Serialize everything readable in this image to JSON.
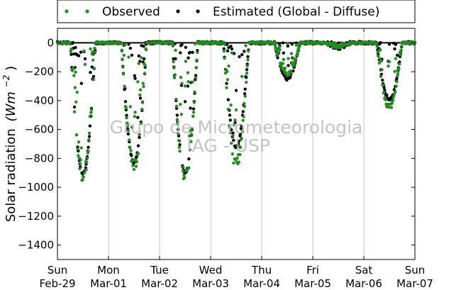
{
  "chart_data": {
    "type": "scatter",
    "title": "",
    "xlabel": "",
    "ylabel": "Solar radiation",
    "ylabel_unit": "(Wm^-2)",
    "ylabel_unit_base": "(Wm",
    "ylabel_unit_exp": "−2",
    "ylim": [
      -1500,
      100
    ],
    "yticks": [
      0,
      -200,
      -400,
      -600,
      -800,
      -1000,
      -1200,
      -1400
    ],
    "xlim_days": [
      0,
      7
    ],
    "xticks": [
      {
        "day": "Sun",
        "date": "Feb-29"
      },
      {
        "day": "Mon",
        "date": "Mar-01"
      },
      {
        "day": "Tue",
        "date": "Mar-02"
      },
      {
        "day": "Wed",
        "date": "Mar-03"
      },
      {
        "day": "Thu",
        "date": "Mar-04"
      },
      {
        "day": "Fri",
        "date": "Mar-05"
      },
      {
        "day": "Sat",
        "date": "Mar-06"
      },
      {
        "day": "Sun",
        "date": "Mar-07"
      }
    ],
    "grid": "vertical",
    "legend_position": "top",
    "watermark": [
      "Grupo de Micrometeorologia",
      "IAG - USP"
    ],
    "series": [
      {
        "name": "Observed",
        "color": "#228b22"
      },
      {
        "name": "Estimated (Global - Diffuse)",
        "color": "#000000"
      }
    ],
    "daily_peaks": [
      {
        "date": "Feb-29",
        "peak_observed": -920,
        "peak_estimated": -905
      },
      {
        "date": "Mar-01",
        "peak_observed": -840,
        "peak_estimated": -830
      },
      {
        "date": "Mar-02",
        "peak_observed": -925,
        "peak_estimated": -900
      },
      {
        "date": "Mar-03",
        "peak_observed": -840,
        "peak_estimated": -720
      },
      {
        "date": "Mar-04",
        "peak_observed": -220,
        "peak_estimated": -250
      },
      {
        "date": "Mar-05",
        "peak_observed": -30,
        "peak_estimated": -40
      },
      {
        "date": "Mar-06",
        "peak_observed": -440,
        "peak_estimated": -390
      }
    ]
  }
}
